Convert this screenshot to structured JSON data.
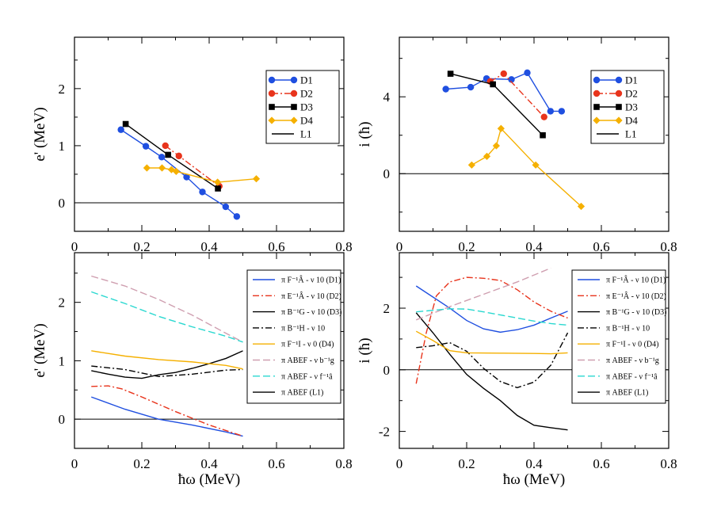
{
  "chart_data": [
    {
      "id": "top-left",
      "type": "line",
      "ylabel": "e' (MeV)",
      "xlabel": "",
      "xlim": [
        0,
        0.8
      ],
      "ylim": [
        -0.5,
        2.9
      ],
      "xticks": [
        0,
        0.2,
        0.4,
        0.6,
        0.8
      ],
      "xtick_labels": [
        "0",
        "0.2",
        "0.4",
        "0.6",
        "0.8"
      ],
      "yticks": [
        0,
        1,
        2
      ],
      "ytick_labels": [
        "0",
        "1",
        "2"
      ],
      "zero_line": true,
      "legend_position": "upper-right",
      "series": [
        {
          "name": "D1",
          "color": "#1f4fe0",
          "dash": "",
          "marker": "circle",
          "x": [
            0.138,
            0.212,
            0.259,
            0.333,
            0.38,
            0.449,
            0.482
          ],
          "y": [
            1.28,
            0.99,
            0.8,
            0.45,
            0.19,
            -0.07,
            -0.24
          ]
        },
        {
          "name": "D2",
          "color": "#e8341c",
          "dash": "8 3 2 3",
          "marker": "circle",
          "x": [
            0.27,
            0.31,
            0.43
          ],
          "y": [
            1.0,
            0.82,
            0.29
          ]
        },
        {
          "name": "D3",
          "color": "#000000",
          "dash": "",
          "marker": "square",
          "x": [
            0.152,
            0.278,
            0.426
          ],
          "y": [
            1.38,
            0.84,
            0.25
          ]
        },
        {
          "name": "D4",
          "color": "#f5b000",
          "dash": "",
          "marker": "diamond",
          "x": [
            0.215,
            0.26,
            0.288,
            0.302,
            0.425,
            0.54
          ],
          "y": [
            0.61,
            0.61,
            0.58,
            0.55,
            0.36,
            0.42
          ]
        },
        {
          "name": "L1",
          "color": "#000000",
          "dash": "",
          "marker": "none",
          "x": [],
          "y": []
        }
      ]
    },
    {
      "id": "top-right",
      "type": "line",
      "ylabel": "i (ħ)",
      "xlabel": "",
      "xlim": [
        0,
        0.8
      ],
      "ylim": [
        -3.0,
        7.1
      ],
      "xticks": [
        0,
        0.2,
        0.4,
        0.6,
        0.8
      ],
      "xtick_labels": [
        "0",
        "0.2",
        "0.4",
        "0.6",
        "0.8"
      ],
      "yticks": [
        0,
        4
      ],
      "ytick_labels": [
        "0",
        "4"
      ],
      "zero_line": true,
      "legend_position": "upper-right",
      "series": [
        {
          "name": "D1",
          "color": "#1f4fe0",
          "dash": "",
          "marker": "circle",
          "x": [
            0.138,
            0.212,
            0.259,
            0.333,
            0.38,
            0.449,
            0.482
          ],
          "y": [
            4.4,
            4.5,
            4.95,
            4.9,
            5.25,
            3.25,
            3.25
          ]
        },
        {
          "name": "D2",
          "color": "#e8341c",
          "dash": "8 3 2 3",
          "marker": "circle",
          "x": [
            0.27,
            0.31,
            0.43
          ],
          "y": [
            4.8,
            5.2,
            2.95
          ]
        },
        {
          "name": "D3",
          "color": "#000000",
          "dash": "",
          "marker": "square",
          "x": [
            0.152,
            0.278,
            0.426
          ],
          "y": [
            5.2,
            4.65,
            2.0
          ]
        },
        {
          "name": "D4",
          "color": "#f5b000",
          "dash": "",
          "marker": "diamond",
          "x": [
            0.215,
            0.26,
            0.288,
            0.302,
            0.405,
            0.54
          ],
          "y": [
            0.45,
            0.9,
            1.45,
            2.35,
            0.45,
            -1.7
          ]
        },
        {
          "name": "L1",
          "color": "#000000",
          "dash": "",
          "marker": "none",
          "x": [],
          "y": []
        }
      ]
    },
    {
      "id": "bottom-left",
      "type": "line",
      "ylabel": "e' (MeV)",
      "xlabel": "ħω (MeV)",
      "xlim": [
        0,
        0.8
      ],
      "ylim": [
        -0.5,
        2.85
      ],
      "xticks": [
        0,
        0.2,
        0.4,
        0.6,
        0.8
      ],
      "xtick_labels": [
        "0",
        "0.2",
        "0.4",
        "0.6",
        "0.8"
      ],
      "yticks": [
        0,
        1,
        2
      ],
      "ytick_labels": [
        "0",
        "1",
        "2"
      ],
      "zero_line": true,
      "legend_position": "upper-right",
      "series": [
        {
          "name": "π F⁻¹Â - ν 10 (D1)",
          "color": "#1f4fe0",
          "dash": "",
          "marker": "none",
          "x": [
            0.05,
            0.15,
            0.25,
            0.35,
            0.45,
            0.5
          ],
          "y": [
            0.38,
            0.17,
            0.0,
            -0.1,
            -0.22,
            -0.29
          ]
        },
        {
          "name": "π E⁻¹Â - ν 10 (D2)",
          "color": "#e8341c",
          "dash": "8 3 2 3",
          "marker": "none",
          "x": [
            0.05,
            0.1,
            0.14,
            0.2,
            0.3,
            0.4,
            0.5
          ],
          "y": [
            0.56,
            0.57,
            0.52,
            0.38,
            0.13,
            -0.1,
            -0.29
          ]
        },
        {
          "name": "π B⁻¹G - ν 10 (D3)",
          "color": "#000000",
          "dash": "",
          "marker": "none",
          "x": [
            0.05,
            0.1,
            0.15,
            0.2,
            0.25,
            0.3,
            0.35,
            0.4,
            0.45,
            0.5
          ],
          "y": [
            0.83,
            0.77,
            0.72,
            0.7,
            0.76,
            0.8,
            0.87,
            0.95,
            1.04,
            1.17
          ]
        },
        {
          "name": "π B⁻¹H - ν 10",
          "color": "#000000",
          "dash": "8 3 2 3",
          "marker": "none",
          "x": [
            0.05,
            0.15,
            0.25,
            0.35,
            0.45,
            0.5
          ],
          "y": [
            0.91,
            0.85,
            0.73,
            0.77,
            0.84,
            0.85
          ]
        },
        {
          "name": "π F⁻¹I - ν 0   (D4)",
          "color": "#f5b000",
          "dash": "",
          "marker": "none",
          "x": [
            0.05,
            0.15,
            0.25,
            0.35,
            0.45,
            0.5
          ],
          "y": [
            1.17,
            1.08,
            1.02,
            0.98,
            0.92,
            0.86
          ]
        },
        {
          "name": "π ABEF - ν b⁻¹g",
          "color": "#cf9fb0",
          "dash": "9 4",
          "marker": "none",
          "x": [
            0.05,
            0.15,
            0.25,
            0.35,
            0.45,
            0.5
          ],
          "y": [
            2.45,
            2.28,
            2.05,
            1.78,
            1.47,
            1.32
          ]
        },
        {
          "name": "π ABEF - ν f⁻¹â",
          "color": "#2ad8d0",
          "dash": "9 4",
          "marker": "none",
          "x": [
            0.05,
            0.15,
            0.25,
            0.35,
            0.45,
            0.5
          ],
          "y": [
            2.18,
            1.98,
            1.76,
            1.58,
            1.42,
            1.32
          ]
        },
        {
          "name": "π ABEF (L1)",
          "color": "#000000",
          "dash": "",
          "marker": "none",
          "x": [],
          "y": []
        }
      ]
    },
    {
      "id": "bottom-right",
      "type": "line",
      "ylabel": "i (ħ)",
      "xlabel": "ħω (MeV)",
      "xlim": [
        0,
        0.8
      ],
      "ylim": [
        -2.55,
        3.8
      ],
      "xticks": [
        0,
        0.2,
        0.4,
        0.6,
        0.8
      ],
      "xtick_labels": [
        "0",
        "0.2",
        "0.4",
        "0.6",
        "0.8"
      ],
      "yticks": [
        -2,
        0,
        2
      ],
      "ytick_labels": [
        "-2",
        "0",
        "2"
      ],
      "zero_line": true,
      "legend_position": "upper-right",
      "series": [
        {
          "name": "π F⁻¹Â - ν 10 (D1)",
          "color": "#1f4fe0",
          "dash": "",
          "marker": "none",
          "x": [
            0.05,
            0.15,
            0.2,
            0.25,
            0.3,
            0.35,
            0.4,
            0.45,
            0.5
          ],
          "y": [
            2.72,
            2.0,
            1.6,
            1.33,
            1.22,
            1.3,
            1.45,
            1.68,
            1.9
          ]
        },
        {
          "name": "π E⁻¹Â - ν 10 (D2)",
          "color": "#e8341c",
          "dash": "8 3 2 3",
          "marker": "none",
          "x": [
            0.05,
            0.08,
            0.11,
            0.15,
            0.2,
            0.25,
            0.3,
            0.35,
            0.4,
            0.45,
            0.5
          ],
          "y": [
            -0.45,
            1.2,
            2.4,
            2.85,
            3.0,
            2.97,
            2.9,
            2.6,
            2.2,
            1.9,
            1.68
          ]
        },
        {
          "name": "π B⁻¹G - ν 10 (D3)",
          "color": "#000000",
          "dash": "",
          "marker": "none",
          "x": [
            0.05,
            0.1,
            0.15,
            0.2,
            0.25,
            0.3,
            0.35,
            0.4,
            0.45,
            0.5
          ],
          "y": [
            1.85,
            1.2,
            0.5,
            -0.15,
            -0.6,
            -1.0,
            -1.48,
            -1.8,
            -1.88,
            -1.95
          ]
        },
        {
          "name": "π B⁻¹H - ν 10",
          "color": "#000000",
          "dash": "8 3 2 3",
          "marker": "none",
          "x": [
            0.05,
            0.1,
            0.15,
            0.2,
            0.25,
            0.3,
            0.35,
            0.4,
            0.45,
            0.5
          ],
          "y": [
            0.72,
            0.78,
            0.88,
            0.6,
            0.05,
            -0.38,
            -0.58,
            -0.4,
            0.15,
            1.2
          ]
        },
        {
          "name": "π F⁻¹I - ν 0   (D4)",
          "color": "#f5b000",
          "dash": "",
          "marker": "none",
          "x": [
            0.05,
            0.1,
            0.15,
            0.2,
            0.3,
            0.4,
            0.45,
            0.5
          ],
          "y": [
            1.25,
            0.95,
            0.62,
            0.55,
            0.54,
            0.53,
            0.52,
            0.55
          ]
        },
        {
          "name": "π ABEF - ν b⁻¹g",
          "color": "#cf9fb0",
          "dash": "9 4",
          "marker": "none",
          "x": [
            0.05,
            0.15,
            0.25,
            0.35,
            0.45
          ],
          "y": [
            1.62,
            2.05,
            2.45,
            2.85,
            3.3
          ]
        },
        {
          "name": "π ABEF - ν f⁻¹â",
          "color": "#2ad8d0",
          "dash": "9 4",
          "marker": "none",
          "x": [
            0.05,
            0.1,
            0.15,
            0.2,
            0.25,
            0.3,
            0.35,
            0.4,
            0.45,
            0.5
          ],
          "y": [
            1.88,
            1.93,
            1.98,
            1.97,
            1.88,
            1.78,
            1.68,
            1.58,
            1.5,
            1.45
          ]
        },
        {
          "name": "π ABEF (L1)",
          "color": "#000000",
          "dash": "",
          "marker": "none",
          "x": [],
          "y": []
        }
      ]
    }
  ]
}
